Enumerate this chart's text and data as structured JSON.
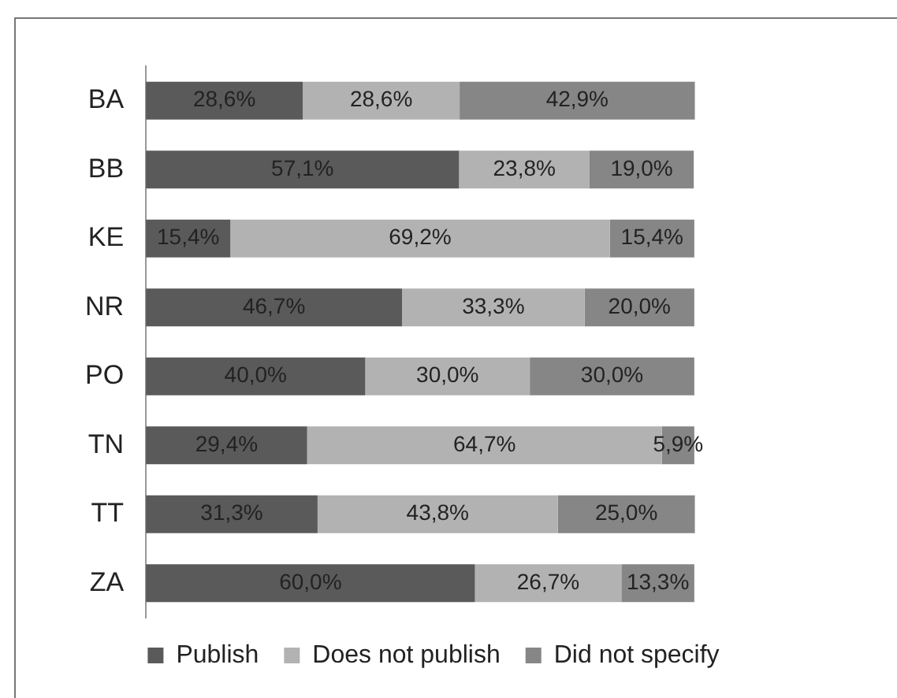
{
  "chart_data": {
    "type": "bar",
    "orientation": "horizontal",
    "stacked": true,
    "categories": [
      "BA",
      "BB",
      "KE",
      "NR",
      "PO",
      "TN",
      "TT",
      "ZA"
    ],
    "series": [
      {
        "name": "Publish",
        "color": "#5a5a5a",
        "values": [
          28.6,
          57.1,
          15.4,
          46.7,
          40.0,
          29.4,
          31.3,
          60.0
        ],
        "value_labels": [
          "28,6%",
          "57,1%",
          "15,4%",
          "46,7%",
          "40,0%",
          "29,4%",
          "31,3%",
          "60,0%"
        ]
      },
      {
        "name": "Does not publish",
        "color": "#b2b2b2",
        "values": [
          28.6,
          23.8,
          69.2,
          33.3,
          30.0,
          64.7,
          43.8,
          26.7
        ],
        "value_labels": [
          "28,6%",
          "23,8%",
          "69,2%",
          "33,3%",
          "30,0%",
          "64,7%",
          "43,8%",
          "26,7%"
        ]
      },
      {
        "name": "Did not specify",
        "color": "#868686",
        "values": [
          42.9,
          19.0,
          15.4,
          20.0,
          30.0,
          5.9,
          25.0,
          13.3
        ],
        "value_labels": [
          "42,9%",
          "19,0%",
          "15,4%",
          "20,0%",
          "30,0%",
          "5,9%",
          "25,0%",
          "13,3%"
        ]
      }
    ],
    "tick_labels": "y",
    "grid": false,
    "legend": "bottom"
  }
}
